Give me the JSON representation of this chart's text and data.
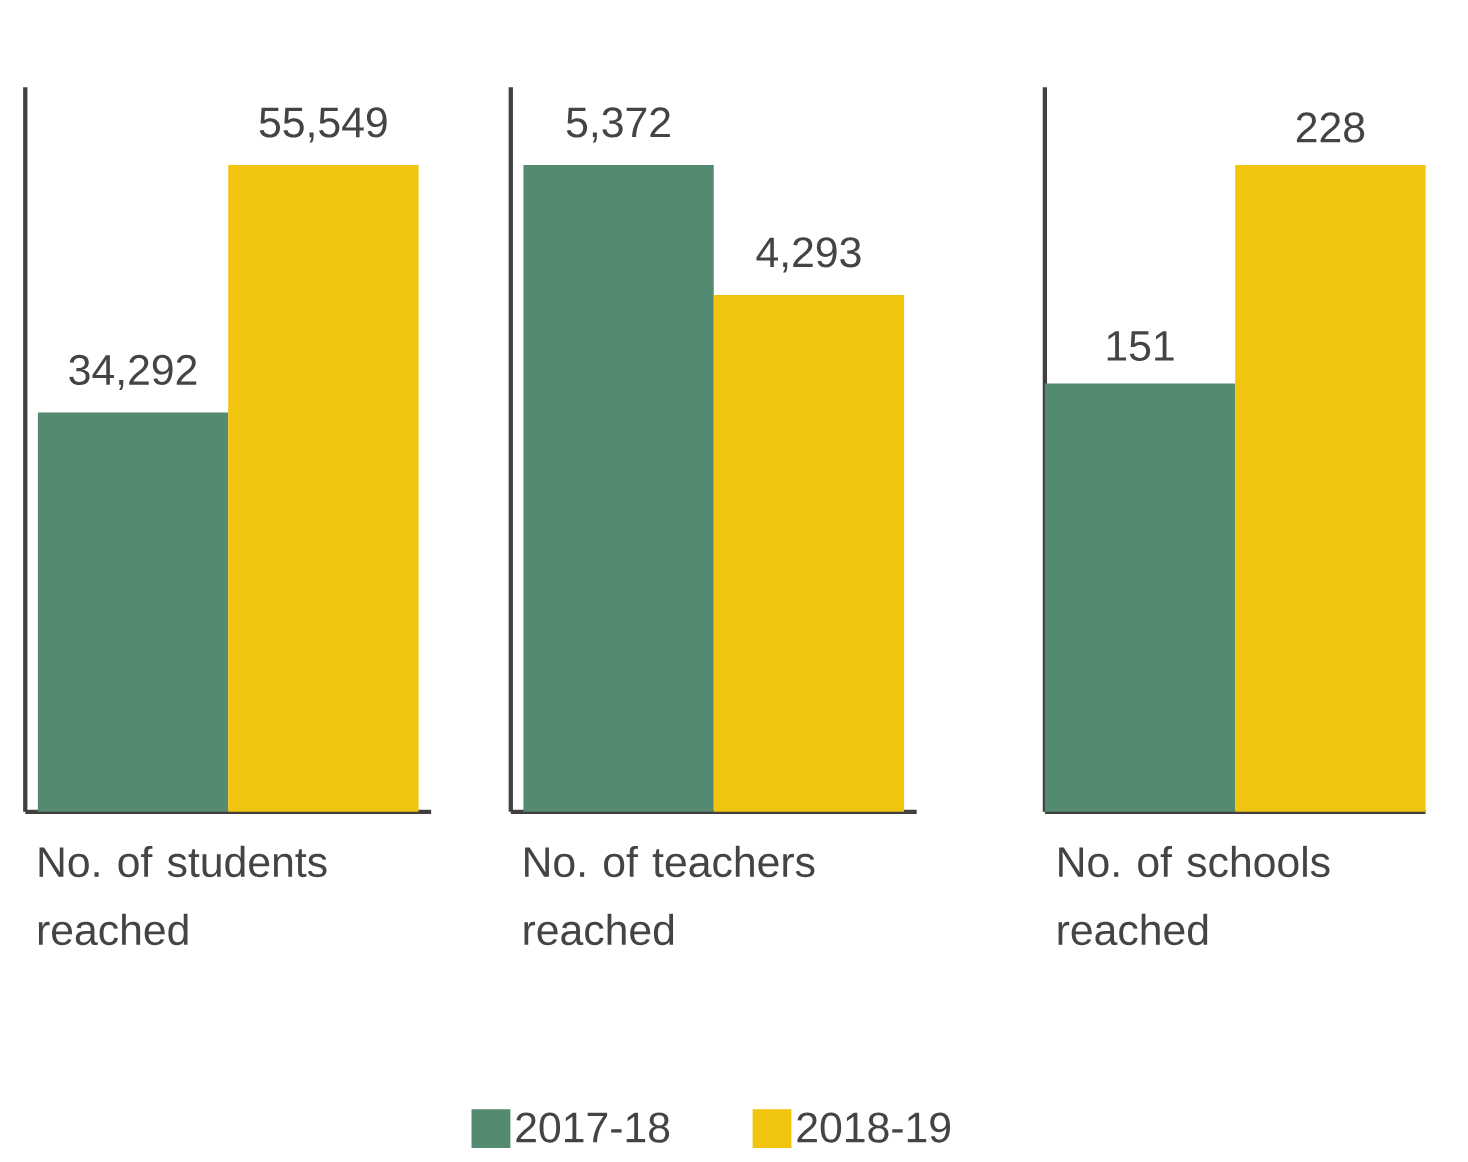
{
  "chart_data": [
    {
      "type": "bar",
      "categories": [
        null
      ],
      "xlabel": "No. of students reached",
      "tick_labels": false,
      "series": [
        {
          "color": "#548a6f",
          "values": [
            34292
          ],
          "value_labels": [
            "34,292"
          ]
        },
        {
          "color": "#f1c40f",
          "values": [
            55549
          ],
          "value_labels": [
            "55,549"
          ]
        }
      ]
    },
    {
      "type": "bar",
      "categories": [
        null
      ],
      "xlabel": "No. of teachers reached",
      "tick_labels": false,
      "legend": "bottom",
      "series": [
        {
          "name": "2017-18",
          "color": "#548a6f",
          "values": [
            5372
          ],
          "value_labels": [
            "5,372"
          ]
        },
        {
          "name": "2018-19",
          "color": "#f1c40f",
          "values": [
            4293
          ],
          "value_labels": [
            "4,293"
          ]
        }
      ]
    },
    {
      "type": "bar",
      "categories": [
        null
      ],
      "xlabel": "No. of schools reached",
      "tick_labels": false,
      "series": [
        {
          "color": "#548a6f",
          "values": [
            151
          ],
          "value_labels": [
            "151"
          ]
        },
        {
          "color": "#f1c40f",
          "values": [
            228
          ],
          "value_labels": [
            "228"
          ]
        }
      ]
    }
  ]
}
